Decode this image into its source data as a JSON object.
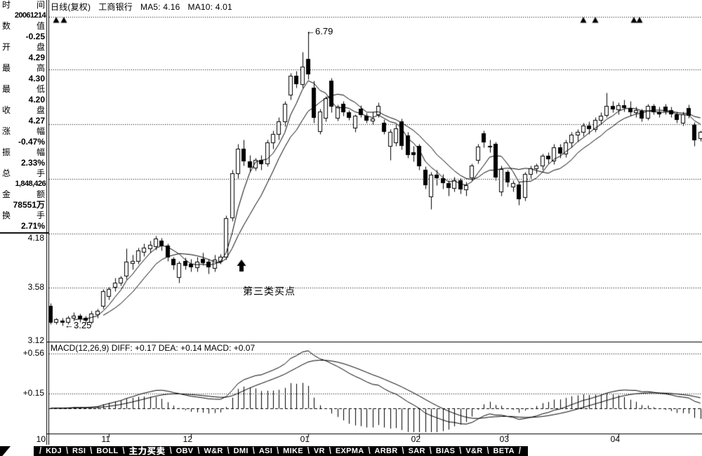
{
  "header": {
    "period": "日线(复权)",
    "stock": "工商银行",
    "ma5": "MA5: 4.16",
    "ma10": "MA10: 4.01"
  },
  "sidebar": {
    "rows": [
      {
        "label": "时间",
        "value": "20061214"
      },
      {
        "label": "数值",
        "value": "-0.25"
      },
      {
        "label": "开盘",
        "value": "4.29"
      },
      {
        "label": "最高",
        "value": "4.30"
      },
      {
        "label": "最低",
        "value": "4.20"
      },
      {
        "label": "收盘",
        "value": "4.27"
      },
      {
        "label": "涨幅",
        "value": "-0.47%"
      },
      {
        "label": "振幅",
        "value": "2.33%"
      },
      {
        "label": "总手",
        "value": "1,848,426"
      },
      {
        "label": "金额",
        "value": "78551万"
      },
      {
        "label": "换手",
        "value": "2.71%"
      }
    ]
  },
  "macd_panel": {
    "header": "MACD(12,26,9) DIFF: +0.17 DEA: +0.14 MACD: +0.07",
    "y_labels": [
      "+0.56",
      "+0.15"
    ]
  },
  "price_axis": {
    "labels": [
      "4.18",
      "3.58",
      "3.12"
    ]
  },
  "annotations": {
    "high": "←6.79",
    "low": "←3.25",
    "buy_point": "第三类买点"
  },
  "tabs": {
    "items": [
      "KDJ",
      "RSI",
      "BOLL",
      "主力买卖",
      "OBV",
      "W&R",
      "DMI",
      "ASI",
      "MIKE",
      "VR",
      "EXPMA",
      "ARBR",
      "SAR",
      "BIAS",
      "V&R",
      "BETA"
    ],
    "active": "主力买卖"
  },
  "chart_data": {
    "type": "candlestick",
    "title": "工商银行 日线(复权)",
    "x_axis_months": [
      {
        "label": "10",
        "idx": null
      },
      {
        "label": "11",
        "idx": 10
      },
      {
        "label": "12",
        "idx": 24
      },
      {
        "label": "01",
        "idx": 44
      },
      {
        "label": "02",
        "idx": 63
      },
      {
        "label": "03",
        "idx": 78
      },
      {
        "label": "04",
        "idx": 97
      }
    ],
    "y_gridline_labels": [
      "4.18",
      "3.58",
      "3.12"
    ],
    "high_label": "6.79",
    "low_label": "3.25",
    "overlays": [
      "MA5",
      "MA10"
    ],
    "sub_indicator": {
      "name": "MACD",
      "params": [
        12,
        26,
        9
      ],
      "diff": 0.17,
      "dea": 0.14,
      "macd": 0.07,
      "y_labels": [
        0.56,
        0.15
      ]
    },
    "signal_marker_xs": [
      80,
      91,
      831,
      848,
      903,
      911
    ],
    "ohlc": [
      [
        3.41,
        3.44,
        3.26,
        3.27
      ],
      [
        3.28,
        3.31,
        3.26,
        3.3
      ],
      [
        3.29,
        3.31,
        3.25,
        3.27
      ],
      [
        3.28,
        3.33,
        3.26,
        3.31
      ],
      [
        3.31,
        3.36,
        3.29,
        3.33
      ],
      [
        3.33,
        3.35,
        3.28,
        3.3
      ],
      [
        3.31,
        3.33,
        3.27,
        3.29
      ],
      [
        3.28,
        3.37,
        3.26,
        3.35
      ],
      [
        3.34,
        3.39,
        3.31,
        3.37
      ],
      [
        3.41,
        3.56,
        3.39,
        3.54
      ],
      [
        3.5,
        3.58,
        3.47,
        3.56
      ],
      [
        3.58,
        3.66,
        3.54,
        3.62
      ],
      [
        3.62,
        3.68,
        3.59,
        3.66
      ],
      [
        3.68,
        3.94,
        3.65,
        3.81
      ],
      [
        3.8,
        3.88,
        3.74,
        3.82
      ],
      [
        3.82,
        3.95,
        3.79,
        3.92
      ],
      [
        3.91,
        3.99,
        3.87,
        3.95
      ],
      [
        3.94,
        4.02,
        3.9,
        3.98
      ],
      [
        3.96,
        4.07,
        3.93,
        4.04
      ],
      [
        4.02,
        4.05,
        3.92,
        3.96
      ],
      [
        3.97,
        3.99,
        3.82,
        3.85
      ],
      [
        3.84,
        3.86,
        3.74,
        3.78
      ],
      [
        3.67,
        3.82,
        3.62,
        3.8
      ],
      [
        3.82,
        3.85,
        3.74,
        3.77
      ],
      [
        3.79,
        3.84,
        3.72,
        3.76
      ],
      [
        3.76,
        3.86,
        3.72,
        3.81
      ],
      [
        3.84,
        3.9,
        3.78,
        3.8
      ],
      [
        3.81,
        3.84,
        3.7,
        3.76
      ],
      [
        3.75,
        3.88,
        3.72,
        3.83
      ],
      [
        3.82,
        3.89,
        3.79,
        3.86
      ],
      [
        3.86,
        4.28,
        3.83,
        4.25
      ],
      [
        4.26,
        4.8,
        4.22,
        4.76
      ],
      [
        4.76,
        5.12,
        4.7,
        5.06
      ],
      [
        5.06,
        5.18,
        4.85,
        4.9
      ],
      [
        4.9,
        4.98,
        4.78,
        4.83
      ],
      [
        4.83,
        4.95,
        4.79,
        4.92
      ],
      [
        4.92,
        4.98,
        4.8,
        4.87
      ],
      [
        4.88,
        5.18,
        4.84,
        5.14
      ],
      [
        5.14,
        5.3,
        5.06,
        5.25
      ],
      [
        5.25,
        5.48,
        5.18,
        5.42
      ],
      [
        5.42,
        5.7,
        5.35,
        5.66
      ],
      [
        5.8,
        6.12,
        5.72,
        6.08
      ],
      [
        6.08,
        6.15,
        5.9,
        5.95
      ],
      [
        5.95,
        6.45,
        5.9,
        6.22
      ],
      [
        6.34,
        6.79,
        6.02,
        6.1
      ],
      [
        5.9,
        6.0,
        5.4,
        5.47
      ],
      [
        5.29,
        5.6,
        5.25,
        5.56
      ],
      [
        5.47,
        5.78,
        5.42,
        5.74
      ],
      [
        6.0,
        6.05,
        5.55,
        5.62
      ],
      [
        5.47,
        5.65,
        5.43,
        5.62
      ],
      [
        5.66,
        5.7,
        5.5,
        5.55
      ],
      [
        5.55,
        5.58,
        5.44,
        5.47
      ],
      [
        5.34,
        5.52,
        5.28,
        5.5
      ],
      [
        5.6,
        5.64,
        5.48,
        5.51
      ],
      [
        5.5,
        5.54,
        5.4,
        5.43
      ],
      [
        5.43,
        5.56,
        5.38,
        5.46
      ],
      [
        5.52,
        5.68,
        5.48,
        5.63
      ],
      [
        5.4,
        5.45,
        5.25,
        5.28
      ],
      [
        5.1,
        5.32,
        4.92,
        5.28
      ],
      [
        5.14,
        5.38,
        5.1,
        5.33
      ],
      [
        5.42,
        5.46,
        5.05,
        5.1
      ],
      [
        5.23,
        5.28,
        4.95,
        4.98
      ],
      [
        5.02,
        5.1,
        4.9,
        4.98
      ],
      [
        5.1,
        5.12,
        4.8,
        4.84
      ],
      [
        4.8,
        4.84,
        4.58,
        4.62
      ],
      [
        4.49,
        4.78,
        4.35,
        4.74
      ],
      [
        4.74,
        4.8,
        4.62,
        4.7
      ],
      [
        4.7,
        4.75,
        4.58,
        4.64
      ],
      [
        4.64,
        4.68,
        4.5,
        4.59
      ],
      [
        4.59,
        4.72,
        4.55,
        4.68
      ],
      [
        4.68,
        4.7,
        4.52,
        4.57
      ],
      [
        4.57,
        4.66,
        4.5,
        4.62
      ],
      [
        4.71,
        4.88,
        4.68,
        4.85
      ],
      [
        4.92,
        5.12,
        4.88,
        5.09
      ],
      [
        5.26,
        5.3,
        5.08,
        5.14
      ],
      [
        5.1,
        5.18,
        5.02,
        5.08
      ],
      [
        5.12,
        5.15,
        4.68,
        4.71
      ],
      [
        4.55,
        4.85,
        4.5,
        4.81
      ],
      [
        4.78,
        4.8,
        4.6,
        4.65
      ],
      [
        4.6,
        4.68,
        4.55,
        4.64
      ],
      [
        4.63,
        4.66,
        4.4,
        4.46
      ],
      [
        4.48,
        4.78,
        4.44,
        4.75
      ],
      [
        4.75,
        4.85,
        4.7,
        4.82
      ],
      [
        4.82,
        4.88,
        4.76,
        4.85
      ],
      [
        4.85,
        5.0,
        4.8,
        4.97
      ],
      [
        4.97,
        5.02,
        4.88,
        4.93
      ],
      [
        4.91,
        5.12,
        4.87,
        5.08
      ],
      [
        5.08,
        5.12,
        4.95,
        5.0
      ],
      [
        5.0,
        5.18,
        4.96,
        5.14
      ],
      [
        5.14,
        5.28,
        5.08,
        5.24
      ],
      [
        5.24,
        5.32,
        5.15,
        5.28
      ],
      [
        5.28,
        5.4,
        5.22,
        5.36
      ],
      [
        5.36,
        5.42,
        5.25,
        5.32
      ],
      [
        5.32,
        5.48,
        5.28,
        5.44
      ],
      [
        5.44,
        5.55,
        5.38,
        5.5
      ],
      [
        5.51,
        5.83,
        5.48,
        5.63
      ],
      [
        5.63,
        5.7,
        5.55,
        5.59
      ],
      [
        5.59,
        5.68,
        5.52,
        5.64
      ],
      [
        5.64,
        5.72,
        5.56,
        5.61
      ],
      [
        5.61,
        5.7,
        5.5,
        5.55
      ],
      [
        5.55,
        5.62,
        5.48,
        5.58
      ],
      [
        5.57,
        5.6,
        5.42,
        5.46
      ],
      [
        5.47,
        5.66,
        5.44,
        5.63
      ],
      [
        5.63,
        5.66,
        5.52,
        5.55
      ],
      [
        5.55,
        5.62,
        5.48,
        5.52
      ],
      [
        5.62,
        5.66,
        5.52,
        5.56
      ],
      [
        5.58,
        5.62,
        5.48,
        5.52
      ],
      [
        5.52,
        5.56,
        5.4,
        5.44
      ],
      [
        5.4,
        5.56,
        5.36,
        5.52
      ],
      [
        5.61,
        5.65,
        5.47,
        5.5
      ],
      [
        5.37,
        5.41,
        5.1,
        5.17
      ],
      [
        5.2,
        5.3,
        5.16,
        5.28
      ]
    ]
  }
}
